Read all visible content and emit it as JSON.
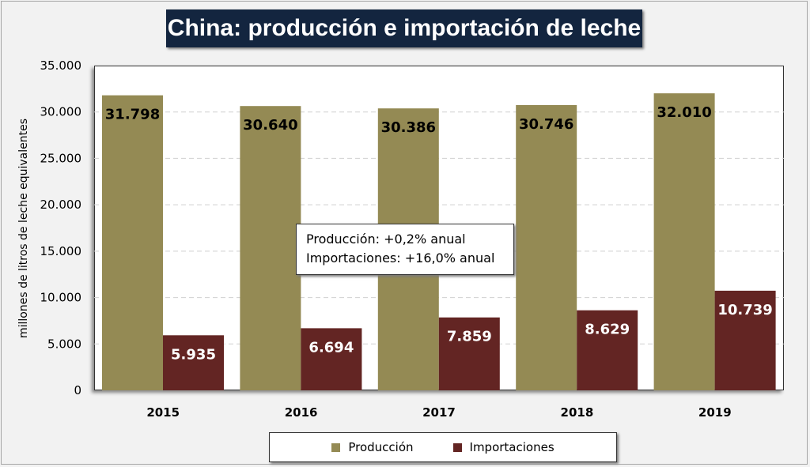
{
  "chart_data": {
    "type": "bar",
    "title": "China: producción e importación de leche",
    "xlabel": "",
    "ylabel": "millones de litros de leche equivalentes",
    "ylim": [
      0,
      35000
    ],
    "yticks": [
      "0",
      "5.000",
      "10.000",
      "15.000",
      "20.000",
      "25.000",
      "30.000",
      "35.000"
    ],
    "categories": [
      "2015",
      "2016",
      "2017",
      "2018",
      "2019"
    ],
    "series": [
      {
        "name": "Producción",
        "color": "#948a54",
        "values": [
          31798,
          30640,
          30386,
          30746,
          32010
        ],
        "labels": [
          "31.798",
          "30.640",
          "30.386",
          "30.746",
          "32.010"
        ]
      },
      {
        "name": "Importaciones",
        "color": "#632523",
        "values": [
          5935,
          6694,
          7859,
          8629,
          10739
        ],
        "labels": [
          "5.935",
          "6.694",
          "7.859",
          "8.629",
          "10.739"
        ]
      }
    ],
    "annotation": [
      "Producción: +0,2% anual",
      "Importaciones: +16,0% anual"
    ],
    "grid": true,
    "legend": "bottom"
  }
}
